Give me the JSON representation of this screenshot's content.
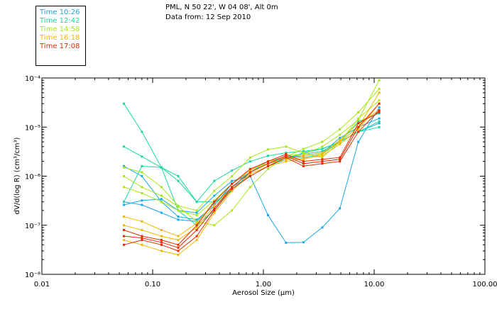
{
  "header": {
    "location": "PML, N 50 22', W 04 08', Alt 0m",
    "data_from": "Data from: 12 Sep 2010"
  },
  "legend": [
    {
      "label": "Time 10:26",
      "color": "#1aa8e6"
    },
    {
      "label": "Time 12:42",
      "color": "#19d8a0"
    },
    {
      "label": "Time 14:58",
      "color": "#a8e619"
    },
    {
      "label": "Time 16:18",
      "color": "#f0b800"
    },
    {
      "label": "Time 17:08",
      "color": "#e62a00"
    }
  ],
  "chart_data": {
    "type": "line",
    "xscale": "log",
    "yscale": "log",
    "xlim": [
      0.01,
      100
    ],
    "ylim": [
      1e-08,
      0.0001
    ],
    "xlabel": "Aerosol Size (µm)",
    "ylabel": "dV/d(log R) (cm³/cm³)",
    "x_ticks": [
      {
        "value": 0.01,
        "label": "0.01"
      },
      {
        "value": 0.1,
        "label": "0.10"
      },
      {
        "value": 1,
        "label": "1.00"
      },
      {
        "value": 10,
        "label": "10.00"
      },
      {
        "value": 100,
        "label": "100.00"
      }
    ],
    "y_ticks": [
      {
        "value": 1e-08,
        "label": "10⁻⁸"
      },
      {
        "value": 1e-07,
        "label": "10⁻⁷"
      },
      {
        "value": 1e-06,
        "label": "10⁻⁶"
      },
      {
        "value": 1e-05,
        "label": "10⁻⁵"
      },
      {
        "value": 0.0001,
        "label": "10⁻⁴"
      }
    ],
    "x": [
      0.055,
      0.08,
      0.12,
      0.17,
      0.25,
      0.36,
      0.52,
      0.76,
      1.1,
      1.6,
      2.3,
      3.4,
      4.9,
      7.2,
      11.1
    ],
    "series": [
      {
        "name": "10:26 a",
        "color": "#1aa8e6",
        "values": [
          1.6e-06,
          1e-06,
          3e-07,
          1.5e-07,
          1.3e-07,
          2.5e-07,
          7e-07,
          1.2e-06,
          2e-06,
          2.4e-06,
          2.6e-06,
          3e-06,
          6e-06,
          1e-05,
          1.5e-05
        ]
      },
      {
        "name": "10:26 b",
        "color": "#1aa8e6",
        "values": [
          3e-07,
          2.6e-07,
          1.8e-07,
          1.3e-07,
          1.2e-07,
          2.8e-07,
          6e-07,
          1e-06,
          1.6e-06,
          2.2e-06,
          3e-06,
          3.6e-06,
          5e-06,
          8e-06,
          1.2e-05
        ]
      },
      {
        "name": "10:26 c",
        "color": "#1aa8e6",
        "values": [
          2.6e-07,
          3.2e-07,
          3.4e-07,
          2e-07,
          1.8e-07,
          4e-07,
          8e-07,
          1e-06,
          1.6e-07,
          4.4e-08,
          4.5e-08,
          9e-08,
          2.2e-07,
          5e-06,
          2.5e-05
        ]
      },
      {
        "name": "12:42 a",
        "color": "#19d8a0",
        "values": [
          3e-05,
          8e-06,
          1.5e-06,
          2e-07,
          1e-07,
          2e-07,
          6e-07,
          1.2e-06,
          1.8e-06,
          2.4e-06,
          2.8e-06,
          3.2e-06,
          5e-06,
          8e-06,
          1e-05
        ]
      },
      {
        "name": "12:42 b",
        "color": "#19d8a0",
        "values": [
          4e-06,
          2.5e-06,
          1.5e-06,
          8e-07,
          3e-07,
          3e-07,
          5e-07,
          1.2e-06,
          2e-06,
          2.5e-06,
          2.4e-06,
          2.8e-06,
          5e-06,
          1.3e-05,
          1.9e-05
        ]
      },
      {
        "name": "12:42 c",
        "color": "#19d8a0",
        "values": [
          3e-07,
          1.6e-06,
          1.5e-06,
          1e-06,
          3e-07,
          8e-07,
          1.3e-06,
          2e-06,
          2.6e-06,
          3e-06,
          3.2e-06,
          3.6e-06,
          5e-06,
          8e-06,
          1.3e-05
        ]
      },
      {
        "name": "14:58 a",
        "color": "#a8e619",
        "values": [
          1.5e-06,
          1.2e-06,
          6e-07,
          2.5e-07,
          2e-07,
          5e-07,
          1e-06,
          2.4e-06,
          3.5e-06,
          4e-06,
          3e-06,
          2.4e-06,
          5e-06,
          1.5e-05,
          3.5e-05
        ]
      },
      {
        "name": "14:58 b",
        "color": "#a8e619",
        "values": [
          6e-07,
          4.5e-07,
          3e-07,
          2e-07,
          1.6e-07,
          3.2e-07,
          7e-07,
          1.4e-06,
          1.8e-06,
          2.6e-06,
          2.8e-06,
          4e-06,
          7e-06,
          1.4e-05,
          9e-05
        ]
      },
      {
        "name": "14:58 c",
        "color": "#a8e619",
        "values": [
          1e-06,
          6e-07,
          4e-07,
          2.4e-07,
          1.2e-07,
          1e-07,
          2e-07,
          6e-07,
          1.4e-06,
          2.5e-06,
          3.6e-06,
          5e-06,
          9e-06,
          2e-05,
          6e-05
        ]
      },
      {
        "name": "16:18 a",
        "color": "#f0b800",
        "values": [
          1e-07,
          8e-08,
          6e-08,
          5e-08,
          9e-08,
          2.5e-07,
          6e-07,
          1.2e-06,
          1.8e-06,
          2.2e-06,
          2.6e-06,
          3e-06,
          5e-06,
          1e-05,
          5e-05
        ]
      },
      {
        "name": "16:18 b",
        "color": "#f0b800",
        "values": [
          5e-08,
          4e-08,
          3e-08,
          2.5e-08,
          5e-08,
          1.8e-07,
          5e-07,
          1.1e-06,
          1.6e-06,
          2e-06,
          2.3e-06,
          2.6e-06,
          4.5e-06,
          9e-06,
          3e-05
        ]
      },
      {
        "name": "16:18 c",
        "color": "#f0b800",
        "values": [
          1.5e-07,
          1.2e-07,
          8e-08,
          6e-08,
          1.1e-07,
          3e-07,
          7e-07,
          1.3e-06,
          2e-06,
          2.4e-06,
          2.2e-06,
          2.8e-06,
          5.5e-06,
          1.2e-05,
          2.2e-05
        ]
      },
      {
        "name": "17:08 a",
        "color": "#e62a00",
        "values": [
          4e-08,
          5e-08,
          4e-08,
          3e-08,
          6e-08,
          2e-07,
          5.5e-07,
          1e-06,
          1.6e-06,
          2.4e-06,
          1.6e-06,
          1.8e-06,
          2e-06,
          8e-06,
          2.2e-05
        ]
      },
      {
        "name": "17:08 b",
        "color": "#e62a00",
        "values": [
          6e-08,
          5.5e-08,
          4.5e-08,
          3.5e-08,
          8e-08,
          2.2e-07,
          6e-07,
          1.2e-06,
          1.8e-06,
          2.6e-06,
          1.8e-06,
          2e-06,
          2.2e-06,
          1e-05,
          3e-05
        ]
      },
      {
        "name": "17:08 c",
        "color": "#e62a00",
        "values": [
          8e-08,
          6e-08,
          5e-08,
          4e-08,
          1e-07,
          3e-07,
          7e-07,
          1.4e-06,
          2e-06,
          2.8e-06,
          2e-06,
          2.2e-06,
          2.4e-06,
          1.2e-05,
          2e-05
        ]
      }
    ]
  }
}
